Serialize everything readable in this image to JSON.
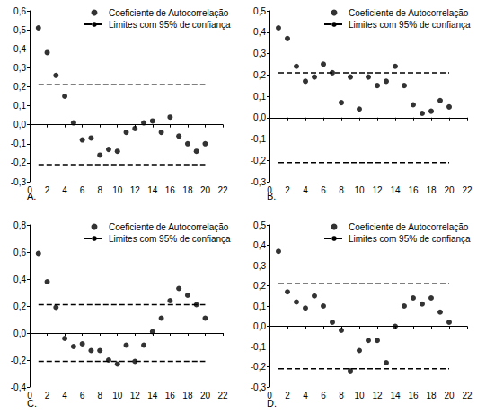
{
  "chart_data": [
    {
      "type": "scatter",
      "title": "A.",
      "grid": false,
      "x": [
        1,
        2,
        3,
        4,
        5,
        6,
        7,
        8,
        9,
        10,
        11,
        12,
        13,
        14,
        15,
        16,
        17,
        18,
        19,
        20
      ],
      "xlim": [
        0,
        22
      ],
      "xticks": [
        0,
        2,
        4,
        6,
        8,
        10,
        12,
        14,
        16,
        18,
        20,
        22
      ],
      "ylim": [
        -0.3,
        0.6
      ],
      "yticks": [
        {
          "value": -0.3,
          "label": "-0,3"
        },
        {
          "value": -0.2,
          "label": "-0,2"
        },
        {
          "value": -0.1,
          "label": "-0,1"
        },
        {
          "value": 0,
          "label": "0,0"
        },
        {
          "value": 0.1,
          "label": "0,1"
        },
        {
          "value": 0.2,
          "label": "0,2"
        },
        {
          "value": 0.3,
          "label": "0,3"
        },
        {
          "value": 0.4,
          "label": "0,4"
        },
        {
          "value": 0.5,
          "label": "0,5"
        },
        {
          "value": 0.6,
          "label": "0,6"
        }
      ],
      "series": [
        {
          "name": "Coeficiente de Autocorrelação",
          "type": "scatter",
          "marker": "circle",
          "color": "#000000",
          "values": [
            0.51,
            0.38,
            0.26,
            0.15,
            0.01,
            -0.08,
            -0.07,
            -0.16,
            -0.13,
            -0.14,
            -0.04,
            -0.02,
            0.01,
            0.02,
            -0.04,
            0.04,
            -0.06,
            -0.1,
            -0.14,
            -0.1
          ]
        },
        {
          "name": "Limites com 95% de confiança",
          "type": "line",
          "line_style": "dashed",
          "color": "#000000",
          "values": [
            0.21,
            0.21,
            0.21,
            0.21,
            0.21,
            0.21,
            0.21,
            0.21,
            0.21,
            0.21,
            0.21,
            0.21,
            0.21,
            0.21,
            0.21,
            0.21,
            0.21,
            0.21,
            0.21,
            0.21
          ]
        },
        {
          "name": "Limites com 95% de confiança",
          "type": "line",
          "line_style": "dashed",
          "color": "#000000",
          "values": [
            -0.21,
            -0.21,
            -0.21,
            -0.21,
            -0.21,
            -0.21,
            -0.21,
            -0.21,
            -0.21,
            -0.21,
            -0.21,
            -0.21,
            -0.21,
            -0.21,
            -0.21,
            -0.21,
            -0.21,
            -0.21,
            -0.21,
            -0.21
          ]
        }
      ]
    },
    {
      "type": "scatter",
      "title": "B.",
      "grid": false,
      "x": [
        1,
        2,
        3,
        4,
        5,
        6,
        7,
        8,
        9,
        10,
        11,
        12,
        13,
        14,
        15,
        16,
        17,
        18,
        19,
        20
      ],
      "xlim": [
        0,
        22
      ],
      "xticks": [
        0,
        2,
        4,
        6,
        8,
        10,
        12,
        14,
        16,
        18,
        20,
        22
      ],
      "ylim": [
        -0.3,
        0.5
      ],
      "yticks": [
        {
          "value": -0.3,
          "label": "-0,3"
        },
        {
          "value": -0.2,
          "label": "-0,2"
        },
        {
          "value": -0.1,
          "label": "-0,1"
        },
        {
          "value": 0,
          "label": "0,0"
        },
        {
          "value": 0.1,
          "label": "0,1"
        },
        {
          "value": 0.2,
          "label": "0,2"
        },
        {
          "value": 0.3,
          "label": "0,3"
        },
        {
          "value": 0.4,
          "label": "0,4"
        },
        {
          "value": 0.5,
          "label": "0,5"
        }
      ],
      "series": [
        {
          "name": "Coeficiente de Autocorrelação",
          "type": "scatter",
          "marker": "circle",
          "color": "#000000",
          "values": [
            0.42,
            0.37,
            0.24,
            0.17,
            0.19,
            0.25,
            0.21,
            0.07,
            0.19,
            0.04,
            0.19,
            0.15,
            0.17,
            0.24,
            0.15,
            0.06,
            0.02,
            0.03,
            0.08,
            0.05
          ]
        },
        {
          "name": "Limites com 95% de confiança",
          "type": "line",
          "line_style": "dashed",
          "color": "#000000",
          "values": [
            0.21,
            0.21,
            0.21,
            0.21,
            0.21,
            0.21,
            0.21,
            0.21,
            0.21,
            0.21,
            0.21,
            0.21,
            0.21,
            0.21,
            0.21,
            0.21,
            0.21,
            0.21,
            0.21,
            0.21
          ]
        },
        {
          "name": "Limites com 95% de confiança",
          "type": "line",
          "line_style": "dashed",
          "color": "#000000",
          "values": [
            -0.21,
            -0.21,
            -0.21,
            -0.21,
            -0.21,
            -0.21,
            -0.21,
            -0.21,
            -0.21,
            -0.21,
            -0.21,
            -0.21,
            -0.21,
            -0.21,
            -0.21,
            -0.21,
            -0.21,
            -0.21,
            -0.21,
            -0.21
          ]
        }
      ]
    },
    {
      "type": "scatter",
      "title": "C.",
      "grid": false,
      "x": [
        1,
        2,
        3,
        4,
        5,
        6,
        7,
        8,
        9,
        10,
        11,
        12,
        13,
        14,
        15,
        16,
        17,
        18,
        19,
        20
      ],
      "xlim": [
        0,
        22
      ],
      "xticks": [
        0,
        2,
        4,
        6,
        8,
        10,
        12,
        14,
        16,
        18,
        20,
        22
      ],
      "ylim": [
        -0.4,
        0.8
      ],
      "yticks": [
        {
          "value": -0.4,
          "label": "-0,4"
        },
        {
          "value": -0.2,
          "label": "-0,2"
        },
        {
          "value": 0,
          "label": "0,0"
        },
        {
          "value": 0.2,
          "label": "0,2"
        },
        {
          "value": 0.4,
          "label": "0,4"
        },
        {
          "value": 0.6,
          "label": "0,6"
        },
        {
          "value": 0.8,
          "label": "0,8"
        }
      ],
      "series": [
        {
          "name": "Coeficiente de Autocorrelação",
          "type": "scatter",
          "marker": "circle",
          "color": "#000000",
          "values": [
            0.59,
            0.38,
            0.19,
            -0.04,
            -0.1,
            -0.08,
            -0.13,
            -0.13,
            -0.2,
            -0.23,
            -0.09,
            -0.21,
            -0.09,
            0.01,
            0.11,
            0.24,
            0.33,
            0.28,
            0.21,
            0.11
          ]
        },
        {
          "name": "Limites com 95% de confiança",
          "type": "line",
          "line_style": "dashed",
          "color": "#000000",
          "values": [
            0.21,
            0.21,
            0.21,
            0.21,
            0.21,
            0.21,
            0.21,
            0.21,
            0.21,
            0.21,
            0.21,
            0.21,
            0.21,
            0.21,
            0.21,
            0.21,
            0.21,
            0.21,
            0.21,
            0.21
          ]
        },
        {
          "name": "Limites com 95% de confiança",
          "type": "line",
          "line_style": "dashed",
          "color": "#000000",
          "values": [
            -0.21,
            -0.21,
            -0.21,
            -0.21,
            -0.21,
            -0.21,
            -0.21,
            -0.21,
            -0.21,
            -0.21,
            -0.21,
            -0.21,
            -0.21,
            -0.21,
            -0.21,
            -0.21,
            -0.21,
            -0.21,
            -0.21,
            -0.21
          ]
        }
      ]
    },
    {
      "type": "scatter",
      "title": "D.",
      "grid": false,
      "x": [
        1,
        2,
        3,
        4,
        5,
        6,
        7,
        8,
        9,
        10,
        11,
        12,
        13,
        14,
        15,
        16,
        17,
        18,
        19,
        20
      ],
      "xlim": [
        0,
        22
      ],
      "xticks": [
        0,
        2,
        4,
        6,
        8,
        10,
        12,
        14,
        16,
        18,
        20,
        22
      ],
      "ylim": [
        -0.3,
        0.5
      ],
      "yticks": [
        {
          "value": -0.3,
          "label": "-0,3"
        },
        {
          "value": -0.2,
          "label": "-0,2"
        },
        {
          "value": -0.1,
          "label": "-0,1"
        },
        {
          "value": 0,
          "label": "0,0"
        },
        {
          "value": 0.1,
          "label": "0,1"
        },
        {
          "value": 0.2,
          "label": "0,2"
        },
        {
          "value": 0.3,
          "label": "0,3"
        },
        {
          "value": 0.4,
          "label": "0,4"
        },
        {
          "value": 0.5,
          "label": "0,5"
        }
      ],
      "series": [
        {
          "name": "Coeficiente de Autocorrelação",
          "type": "scatter",
          "marker": "circle",
          "color": "#000000",
          "values": [
            0.37,
            0.17,
            0.12,
            0.09,
            0.15,
            0.1,
            0.02,
            -0.02,
            -0.22,
            -0.12,
            -0.07,
            -0.07,
            -0.18,
            0,
            0.1,
            0.14,
            0.11,
            0.14,
            0.07,
            0.02
          ]
        },
        {
          "name": "Limites com 95% de confiança",
          "type": "line",
          "line_style": "dashed",
          "color": "#000000",
          "values": [
            0.21,
            0.21,
            0.21,
            0.21,
            0.21,
            0.21,
            0.21,
            0.21,
            0.21,
            0.21,
            0.21,
            0.21,
            0.21,
            0.21,
            0.21,
            0.21,
            0.21,
            0.21,
            0.21,
            0.21
          ]
        },
        {
          "name": "Limites com 95% de confiança",
          "type": "line",
          "line_style": "dashed",
          "color": "#000000",
          "values": [
            -0.21,
            -0.21,
            -0.21,
            -0.21,
            -0.21,
            -0.21,
            -0.21,
            -0.21,
            -0.21,
            -0.21,
            -0.21,
            -0.21,
            -0.21,
            -0.21,
            -0.21,
            -0.21,
            -0.21,
            -0.21,
            -0.21,
            -0.21
          ]
        }
      ]
    }
  ]
}
